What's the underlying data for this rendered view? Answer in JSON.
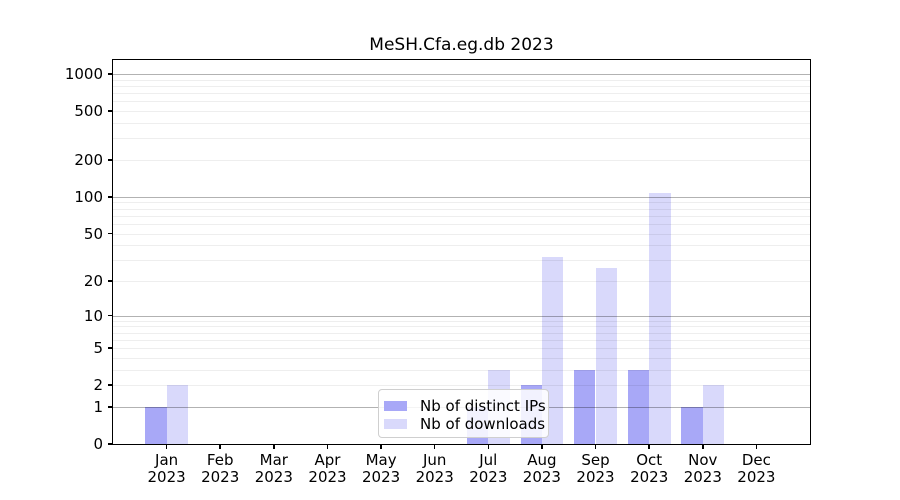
{
  "title": "MeSH.Cfa.eg.db 2023",
  "chart_data": {
    "type": "bar",
    "title": "MeSH.Cfa.eg.db 2023",
    "categories": [
      "Jan 2023",
      "Feb 2023",
      "Mar 2023",
      "Apr 2023",
      "May 2023",
      "Jun 2023",
      "Jul 2023",
      "Aug 2023",
      "Sep 2023",
      "Oct 2023",
      "Nov 2023",
      "Dec 2023"
    ],
    "series": [
      {
        "name": "Nb of distinct IPs",
        "color": "#a8a8f7",
        "values": [
          1,
          0,
          0,
          0,
          0,
          0,
          1,
          2,
          3,
          3,
          1,
          0
        ]
      },
      {
        "name": "Nb of downloads",
        "color": "#d9d9fb",
        "values": [
          2,
          0,
          0,
          0,
          0,
          0,
          3,
          32,
          26,
          108,
          2,
          0
        ]
      }
    ],
    "xlabel": "",
    "ylabel": "",
    "yscale": "log10(1+y)",
    "ylim": [
      0,
      1300
    ],
    "y_tick_labels": [
      0,
      1,
      2,
      5,
      10,
      20,
      50,
      100,
      200,
      500,
      1000
    ],
    "y_major_gridlines": [
      1,
      10,
      100,
      1000
    ],
    "y_minor_gridlines": [
      2,
      3,
      4,
      5,
      6,
      7,
      8,
      9,
      20,
      30,
      40,
      50,
      60,
      70,
      80,
      90,
      200,
      300,
      400,
      500,
      600,
      700,
      800,
      900
    ],
    "grid": "on",
    "legend_position": "lower center"
  },
  "colors": {
    "bar_distinct_ips": "#a8a8f7",
    "bar_downloads": "#d9d9fb",
    "grid_major": "#b4b4b4",
    "grid_minor": "#ececec",
    "axis": "#000000",
    "background": "#ffffff"
  }
}
